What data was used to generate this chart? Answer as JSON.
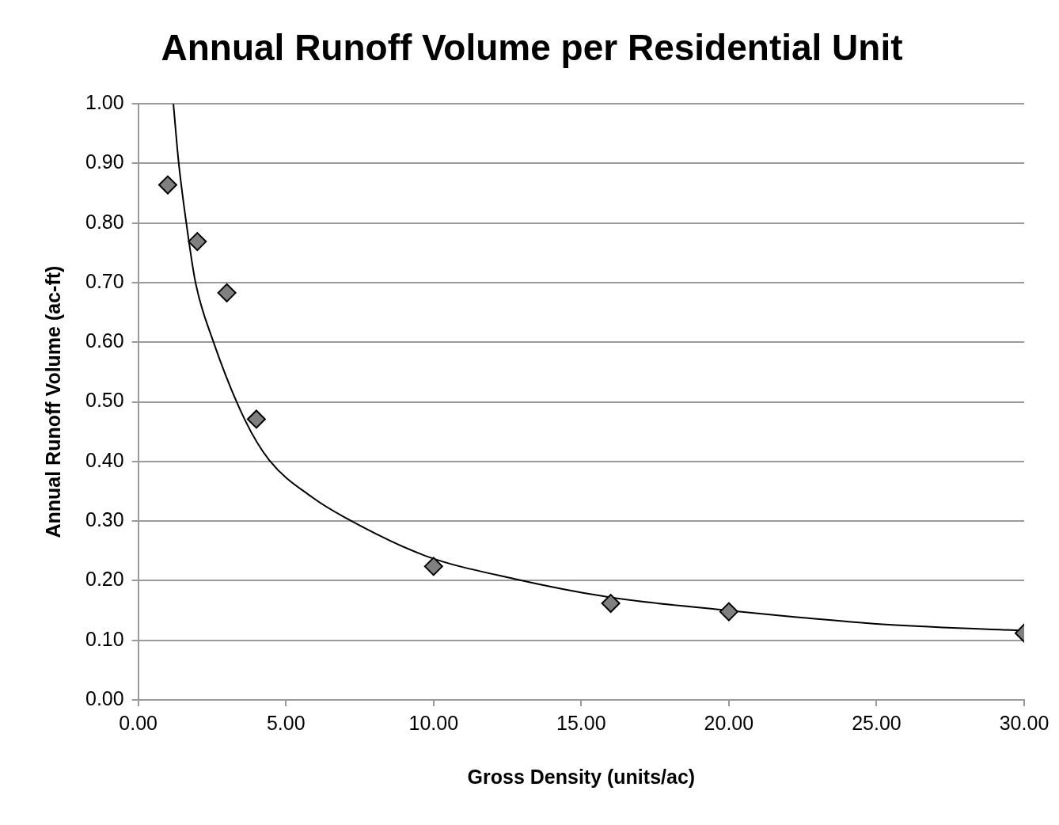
{
  "chart_data": {
    "type": "scatter",
    "title": "Annual Runoff Volume per Residential Unit",
    "xlabel": "Gross Density (units/ac)",
    "ylabel": "Annual Runoff Volume (ac-ft)",
    "xlim": [
      0,
      30
    ],
    "ylim": [
      0,
      1
    ],
    "xticks": [
      {
        "value": 0,
        "label": "0.00"
      },
      {
        "value": 5,
        "label": "5.00"
      },
      {
        "value": 10,
        "label": "10.00"
      },
      {
        "value": 15,
        "label": "15.00"
      },
      {
        "value": 20,
        "label": "20.00"
      },
      {
        "value": 25,
        "label": "25.00"
      },
      {
        "value": 30,
        "label": "30.00"
      }
    ],
    "yticks": [
      {
        "value": 0,
        "label": "0.00"
      },
      {
        "value": 0.1,
        "label": "0.10"
      },
      {
        "value": 0.2,
        "label": "0.20"
      },
      {
        "value": 0.3,
        "label": "0.30"
      },
      {
        "value": 0.4,
        "label": "0.40"
      },
      {
        "value": 0.5,
        "label": "0.50"
      },
      {
        "value": 0.6,
        "label": "0.60"
      },
      {
        "value": 0.7,
        "label": "0.70"
      },
      {
        "value": 0.8,
        "label": "0.80"
      },
      {
        "value": 0.9,
        "label": "0.90"
      },
      {
        "value": 1,
        "label": "1.00"
      }
    ],
    "grid": "y",
    "legend": false,
    "series": [
      {
        "color": "#808080",
        "marker": "diamond",
        "x": [
          1,
          2,
          3,
          4,
          10,
          16,
          20,
          30
        ],
        "values": [
          0.864,
          0.769,
          0.683,
          0.471,
          0.224,
          0.162,
          0.148,
          0.112
        ]
      },
      {
        "type": "line",
        "color": "#000000",
        "marker": "none",
        "line_style": "solid",
        "x": [
          1.19,
          1.37,
          1.62,
          1.94,
          2.53,
          3.62,
          4.44,
          5.89,
          7,
          9.71,
          12.75,
          16,
          20,
          24.9,
          30
        ],
        "values": [
          1.0,
          0.901,
          0.803,
          0.7,
          0.603,
          0.469,
          0.402,
          0.34,
          0.306,
          0.242,
          0.203,
          0.172,
          0.15,
          0.128,
          0.116
        ]
      }
    ]
  }
}
